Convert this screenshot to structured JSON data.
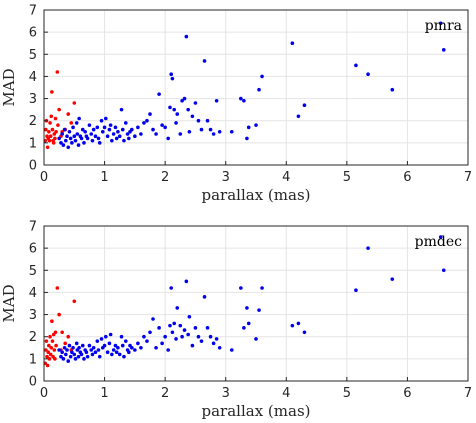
{
  "chart_data": [
    {
      "type": "scatter",
      "panel_label": "pmra",
      "xlabel": "parallax (mas)",
      "ylabel": "MAD",
      "xlim": [
        0,
        7
      ],
      "ylim": [
        0,
        7
      ],
      "x_ticks": [
        0,
        1,
        2,
        3,
        4,
        5,
        6,
        7
      ],
      "y_ticks": [
        0,
        1,
        2,
        3,
        4,
        5,
        6,
        7
      ],
      "grid": true,
      "series": [
        {
          "color": "#ff0000",
          "points": [
            [
              0.02,
              1.1
            ],
            [
              0.03,
              1.6
            ],
            [
              0.04,
              2.0
            ],
            [
              0.05,
              1.3
            ],
            [
              0.06,
              0.8
            ],
            [
              0.07,
              1.2
            ],
            [
              0.08,
              1.5
            ],
            [
              0.09,
              1.1
            ],
            [
              0.1,
              1.9
            ],
            [
              0.11,
              1.3
            ],
            [
              0.12,
              2.2
            ],
            [
              0.13,
              3.3
            ],
            [
              0.14,
              1.6
            ],
            [
              0.15,
              1.1
            ],
            [
              0.16,
              1.0
            ],
            [
              0.17,
              1.4
            ],
            [
              0.18,
              1.2
            ],
            [
              0.19,
              2.1
            ],
            [
              0.2,
              1.5
            ],
            [
              0.22,
              4.2
            ],
            [
              0.23,
              1.8
            ],
            [
              0.25,
              2.5
            ],
            [
              0.28,
              1.3
            ],
            [
              0.3,
              1.5
            ],
            [
              0.35,
              1.6
            ],
            [
              0.4,
              2.3
            ],
            [
              0.45,
              1.9
            ],
            [
              0.5,
              2.8
            ]
          ]
        },
        {
          "color": "#0000ee",
          "points": [
            [
              0.25,
              1.2
            ],
            [
              0.28,
              1.0
            ],
            [
              0.3,
              1.4
            ],
            [
              0.32,
              0.9
            ],
            [
              0.34,
              1.6
            ],
            [
              0.36,
              1.1
            ],
            [
              0.38,
              1.3
            ],
            [
              0.4,
              0.8
            ],
            [
              0.42,
              1.5
            ],
            [
              0.44,
              1.2
            ],
            [
              0.46,
              1.0
            ],
            [
              0.48,
              1.7
            ],
            [
              0.5,
              1.3
            ],
            [
              0.52,
              1.1
            ],
            [
              0.54,
              1.9
            ],
            [
              0.55,
              1.4
            ],
            [
              0.57,
              0.9
            ],
            [
              0.58,
              2.1
            ],
            [
              0.6,
              1.3
            ],
            [
              0.62,
              1.2
            ],
            [
              0.64,
              1.6
            ],
            [
              0.66,
              1.0
            ],
            [
              0.68,
              1.5
            ],
            [
              0.7,
              1.3
            ],
            [
              0.72,
              1.2
            ],
            [
              0.75,
              1.8
            ],
            [
              0.78,
              1.4
            ],
            [
              0.8,
              1.1
            ],
            [
              0.82,
              1.6
            ],
            [
              0.85,
              1.3
            ],
            [
              0.88,
              1.7
            ],
            [
              0.9,
              1.2
            ],
            [
              0.92,
              1.0
            ],
            [
              0.95,
              2.0
            ],
            [
              0.97,
              1.5
            ],
            [
              1.0,
              1.7
            ],
            [
              1.02,
              2.1
            ],
            [
              1.05,
              1.3
            ],
            [
              1.08,
              1.6
            ],
            [
              1.1,
              1.8
            ],
            [
              1.12,
              1.1
            ],
            [
              1.15,
              1.4
            ],
            [
              1.18,
              1.7
            ],
            [
              1.2,
              1.2
            ],
            [
              1.22,
              1.5
            ],
            [
              1.25,
              1.3
            ],
            [
              1.28,
              2.5
            ],
            [
              1.3,
              1.6
            ],
            [
              1.32,
              1.1
            ],
            [
              1.35,
              1.9
            ],
            [
              1.38,
              1.4
            ],
            [
              1.4,
              1.2
            ],
            [
              1.42,
              1.5
            ],
            [
              1.45,
              1.6
            ],
            [
              1.5,
              1.3
            ],
            [
              1.55,
              1.7
            ],
            [
              1.6,
              1.4
            ],
            [
              1.65,
              1.9
            ],
            [
              1.7,
              2.0
            ],
            [
              1.75,
              2.3
            ],
            [
              1.8,
              1.6
            ],
            [
              1.85,
              1.4
            ],
            [
              1.9,
              3.2
            ],
            [
              1.95,
              1.8
            ],
            [
              2.0,
              1.7
            ],
            [
              2.05,
              1.2
            ],
            [
              2.08,
              2.6
            ],
            [
              2.1,
              4.1
            ],
            [
              2.12,
              3.9
            ],
            [
              2.15,
              2.5
            ],
            [
              2.18,
              1.9
            ],
            [
              2.2,
              2.3
            ],
            [
              2.25,
              1.4
            ],
            [
              2.28,
              2.9
            ],
            [
              2.32,
              3.0
            ],
            [
              2.35,
              5.8
            ],
            [
              2.38,
              2.5
            ],
            [
              2.4,
              1.5
            ],
            [
              2.45,
              2.2
            ],
            [
              2.5,
              2.8
            ],
            [
              2.55,
              2.0
            ],
            [
              2.6,
              1.6
            ],
            [
              2.65,
              4.7
            ],
            [
              2.7,
              2.0
            ],
            [
              2.75,
              1.6
            ],
            [
              2.8,
              1.4
            ],
            [
              2.85,
              2.9
            ],
            [
              2.9,
              1.5
            ],
            [
              3.1,
              1.5
            ],
            [
              3.25,
              3.0
            ],
            [
              3.3,
              2.9
            ],
            [
              3.35,
              1.2
            ],
            [
              3.38,
              1.7
            ],
            [
              3.5,
              1.8
            ],
            [
              3.55,
              3.4
            ],
            [
              3.6,
              4.0
            ],
            [
              4.1,
              5.5
            ],
            [
              4.2,
              2.2
            ],
            [
              4.3,
              2.7
            ],
            [
              5.15,
              4.5
            ],
            [
              5.35,
              4.1
            ],
            [
              5.75,
              3.4
            ],
            [
              6.55,
              6.4
            ],
            [
              6.6,
              5.2
            ]
          ]
        }
      ]
    },
    {
      "type": "scatter",
      "panel_label": "pmdec",
      "xlabel": "parallax (mas)",
      "ylabel": "MAD",
      "xlim": [
        0,
        7
      ],
      "ylim": [
        0,
        7
      ],
      "x_ticks": [
        0,
        1,
        2,
        3,
        4,
        5,
        6,
        7
      ],
      "y_ticks": [
        0,
        1,
        2,
        3,
        4,
        5,
        6,
        7
      ],
      "grid": true,
      "series": [
        {
          "color": "#ff0000",
          "points": [
            [
              0.02,
              0.8
            ],
            [
              0.03,
              1.4
            ],
            [
              0.04,
              1.8
            ],
            [
              0.05,
              1.1
            ],
            [
              0.06,
              0.7
            ],
            [
              0.07,
              1.3
            ],
            [
              0.08,
              1.6
            ],
            [
              0.09,
              1.0
            ],
            [
              0.1,
              2.0
            ],
            [
              0.11,
              1.2
            ],
            [
              0.12,
              1.5
            ],
            [
              0.13,
              2.7
            ],
            [
              0.14,
              1.8
            ],
            [
              0.15,
              1.1
            ],
            [
              0.16,
              2.1
            ],
            [
              0.17,
              1.4
            ],
            [
              0.18,
              1.0
            ],
            [
              0.19,
              2.2
            ],
            [
              0.2,
              1.6
            ],
            [
              0.22,
              4.2
            ],
            [
              0.25,
              3.0
            ],
            [
              0.28,
              1.4
            ],
            [
              0.3,
              2.2
            ],
            [
              0.35,
              1.7
            ],
            [
              0.4,
              2.0
            ],
            [
              0.45,
              1.4
            ],
            [
              0.5,
              3.6
            ]
          ]
        },
        {
          "color": "#0000ee",
          "points": [
            [
              0.25,
              1.4
            ],
            [
              0.28,
              1.1
            ],
            [
              0.3,
              1.3
            ],
            [
              0.32,
              1.0
            ],
            [
              0.34,
              1.5
            ],
            [
              0.36,
              1.2
            ],
            [
              0.38,
              1.4
            ],
            [
              0.4,
              0.9
            ],
            [
              0.42,
              1.6
            ],
            [
              0.44,
              1.1
            ],
            [
              0.46,
              1.3
            ],
            [
              0.48,
              1.5
            ],
            [
              0.5,
              1.2
            ],
            [
              0.52,
              1.0
            ],
            [
              0.54,
              1.7
            ],
            [
              0.55,
              1.4
            ],
            [
              0.57,
              1.1
            ],
            [
              0.58,
              1.5
            ],
            [
              0.6,
              1.3
            ],
            [
              0.62,
              1.2
            ],
            [
              0.64,
              1.6
            ],
            [
              0.66,
              1.0
            ],
            [
              0.68,
              1.4
            ],
            [
              0.7,
              1.3
            ],
            [
              0.72,
              1.1
            ],
            [
              0.75,
              1.6
            ],
            [
              0.78,
              1.4
            ],
            [
              0.8,
              1.2
            ],
            [
              0.82,
              1.5
            ],
            [
              0.85,
              1.3
            ],
            [
              0.88,
              1.8
            ],
            [
              0.9,
              1.4
            ],
            [
              0.92,
              1.1
            ],
            [
              0.95,
              1.9
            ],
            [
              0.97,
              1.5
            ],
            [
              1.0,
              1.6
            ],
            [
              1.02,
              2.0
            ],
            [
              1.05,
              1.3
            ],
            [
              1.08,
              1.7
            ],
            [
              1.1,
              2.1
            ],
            [
              1.12,
              1.2
            ],
            [
              1.15,
              1.4
            ],
            [
              1.18,
              1.6
            ],
            [
              1.2,
              1.3
            ],
            [
              1.22,
              1.5
            ],
            [
              1.25,
              1.2
            ],
            [
              1.28,
              2.0
            ],
            [
              1.3,
              1.6
            ],
            [
              1.32,
              1.1
            ],
            [
              1.35,
              1.8
            ],
            [
              1.38,
              1.4
            ],
            [
              1.4,
              1.3
            ],
            [
              1.42,
              1.6
            ],
            [
              1.45,
              1.5
            ],
            [
              1.5,
              1.4
            ],
            [
              1.55,
              1.7
            ],
            [
              1.6,
              1.5
            ],
            [
              1.65,
              2.0
            ],
            [
              1.7,
              1.8
            ],
            [
              1.75,
              2.2
            ],
            [
              1.8,
              2.8
            ],
            [
              1.85,
              1.5
            ],
            [
              1.9,
              2.4
            ],
            [
              1.95,
              1.7
            ],
            [
              2.0,
              2.0
            ],
            [
              2.05,
              1.4
            ],
            [
              2.08,
              2.5
            ],
            [
              2.1,
              4.2
            ],
            [
              2.12,
              2.2
            ],
            [
              2.15,
              2.6
            ],
            [
              2.18,
              1.9
            ],
            [
              2.2,
              3.3
            ],
            [
              2.25,
              2.5
            ],
            [
              2.28,
              2.0
            ],
            [
              2.32,
              2.3
            ],
            [
              2.35,
              4.5
            ],
            [
              2.38,
              2.1
            ],
            [
              2.4,
              2.9
            ],
            [
              2.45,
              1.6
            ],
            [
              2.5,
              2.4
            ],
            [
              2.55,
              2.0
            ],
            [
              2.6,
              1.8
            ],
            [
              2.65,
              3.8
            ],
            [
              2.7,
              2.4
            ],
            [
              2.75,
              2.0
            ],
            [
              2.8,
              1.7
            ],
            [
              2.85,
              1.9
            ],
            [
              2.9,
              1.5
            ],
            [
              3.1,
              1.4
            ],
            [
              3.25,
              4.2
            ],
            [
              3.3,
              2.4
            ],
            [
              3.35,
              3.3
            ],
            [
              3.38,
              2.6
            ],
            [
              3.5,
              1.9
            ],
            [
              3.55,
              3.2
            ],
            [
              3.6,
              4.2
            ],
            [
              4.1,
              2.5
            ],
            [
              4.2,
              2.6
            ],
            [
              4.3,
              2.2
            ],
            [
              5.15,
              4.1
            ],
            [
              5.35,
              6.0
            ],
            [
              5.75,
              4.6
            ],
            [
              6.55,
              6.5
            ],
            [
              6.6,
              5.0
            ]
          ]
        }
      ]
    }
  ]
}
